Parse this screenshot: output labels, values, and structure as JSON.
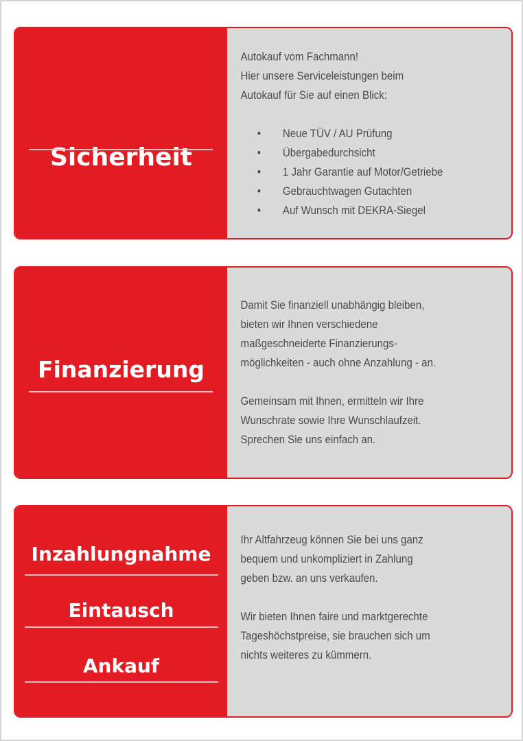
{
  "colors": {
    "accent": "#e31b23",
    "panel": "#dadada",
    "text": "#4a4a4a"
  },
  "cards": [
    {
      "headings": [
        "Sicherheit"
      ],
      "intro": [
        "Autokauf vom Fachmann!",
        "Hier unsere Serviceleistungen beim",
        "Autokauf für Sie auf einen Blick:"
      ],
      "bullets": [
        "Neue TÜV / AU Prüfung",
        "Übergabedurchsicht",
        "1 Jahr Garantie auf Motor/Getriebe",
        "Gebrauchtwagen Gutachten",
        "Auf Wunsch mit DEKRA-Siegel"
      ]
    },
    {
      "headings": [
        "Finanzierung"
      ],
      "para1": [
        "Damit Sie finanziell unabhängig bleiben,",
        "bieten wir Ihnen verschiedene",
        "maßgeschneiderte Finanzierungs-",
        "möglichkeiten - auch ohne Anzahlung - an."
      ],
      "para2": [
        "Gemeinsam mit Ihnen, ermitteln wir Ihre",
        "Wunschrate sowie Ihre Wunschlaufzeit.",
        "Sprechen Sie uns einfach an."
      ]
    },
    {
      "headings": [
        "Inzahlungnahme",
        "Eintausch",
        "Ankauf"
      ],
      "para1": [
        "Ihr Altfahrzeug können Sie bei uns ganz",
        "bequem und unkompliziert in Zahlung",
        "geben bzw. an uns verkaufen."
      ],
      "para2": [
        "Wir bieten Ihnen faire und marktgerechte",
        "Tageshöchstpreise, sie brauchen sich um",
        "nichts weiteres zu kümmern."
      ]
    }
  ]
}
